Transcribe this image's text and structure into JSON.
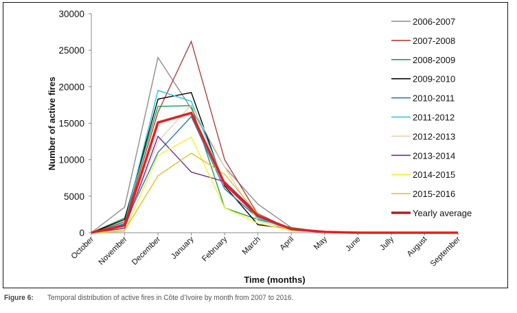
{
  "caption": {
    "figure_label": "Figure 6:",
    "text": "Temporal distribution of active fires in Côte d’Ivoire by month from 2007 to 2016."
  },
  "chart_data": {
    "type": "line",
    "title": "",
    "xlabel": "Time (months)",
    "ylabel": "Number of active fires",
    "ylim": [
      0,
      30000
    ],
    "yticks": [
      0,
      5000,
      10000,
      15000,
      20000,
      25000,
      30000
    ],
    "grid": false,
    "legend_position": "right",
    "categories": [
      "October",
      "November",
      "December",
      "January",
      "February",
      "March",
      "April",
      "May",
      "June",
      "Jully",
      "August",
      "September"
    ],
    "series": [
      {
        "name": "2006-2007",
        "color": "#8c8c8c",
        "values": [
          0,
          3500,
          24000,
          17000,
          9000,
          3900,
          700,
          100,
          0,
          0,
          0,
          0
        ]
      },
      {
        "name": "2007-2008",
        "color": "#b0403c",
        "values": [
          0,
          1500,
          16500,
          26200,
          10000,
          2500,
          500,
          100,
          0,
          0,
          0,
          0
        ]
      },
      {
        "name": "2008-2009",
        "color": "#1aa05a",
        "values": [
          0,
          2000,
          17300,
          17400,
          3400,
          1800,
          700,
          100,
          0,
          0,
          0,
          0
        ]
      },
      {
        "name": "2009-2010",
        "color": "#000000",
        "values": [
          0,
          1800,
          18300,
          19200,
          6400,
          1100,
          500,
          100,
          0,
          0,
          0,
          0
        ]
      },
      {
        "name": "2010-2011",
        "color": "#2878b4",
        "values": [
          0,
          1200,
          11000,
          15900,
          6000,
          2000,
          400,
          100,
          0,
          0,
          0,
          0
        ]
      },
      {
        "name": "2011-2012",
        "color": "#1ec8dc",
        "values": [
          0,
          1300,
          19500,
          18000,
          6800,
          2000,
          500,
          100,
          0,
          0,
          0,
          0
        ]
      },
      {
        "name": "2012-2013",
        "color": "#e6d2b4",
        "values": [
          0,
          700,
          12500,
          17500,
          9000,
          1600,
          400,
          100,
          0,
          0,
          0,
          0
        ]
      },
      {
        "name": "2013-2014",
        "color": "#6a2c96",
        "values": [
          0,
          600,
          13200,
          8300,
          7000,
          2600,
          400,
          100,
          0,
          0,
          0,
          0
        ]
      },
      {
        "name": "2014-2015",
        "color": "#f5f028",
        "values": [
          0,
          200,
          10600,
          13100,
          3400,
          1300,
          300,
          100,
          0,
          0,
          0,
          0
        ]
      },
      {
        "name": "2015-2016",
        "color": "#e6be28",
        "values": [
          0,
          300,
          7800,
          10900,
          8000,
          2500,
          300,
          100,
          0,
          0,
          0,
          0
        ]
      },
      {
        "name": "Yearly average",
        "color": "#e61e1e",
        "legend_color": "#b41e1e",
        "bold": true,
        "values": [
          0,
          1000,
          15100,
          16400,
          6700,
          2300,
          500,
          100,
          0,
          0,
          0,
          0
        ]
      }
    ]
  }
}
